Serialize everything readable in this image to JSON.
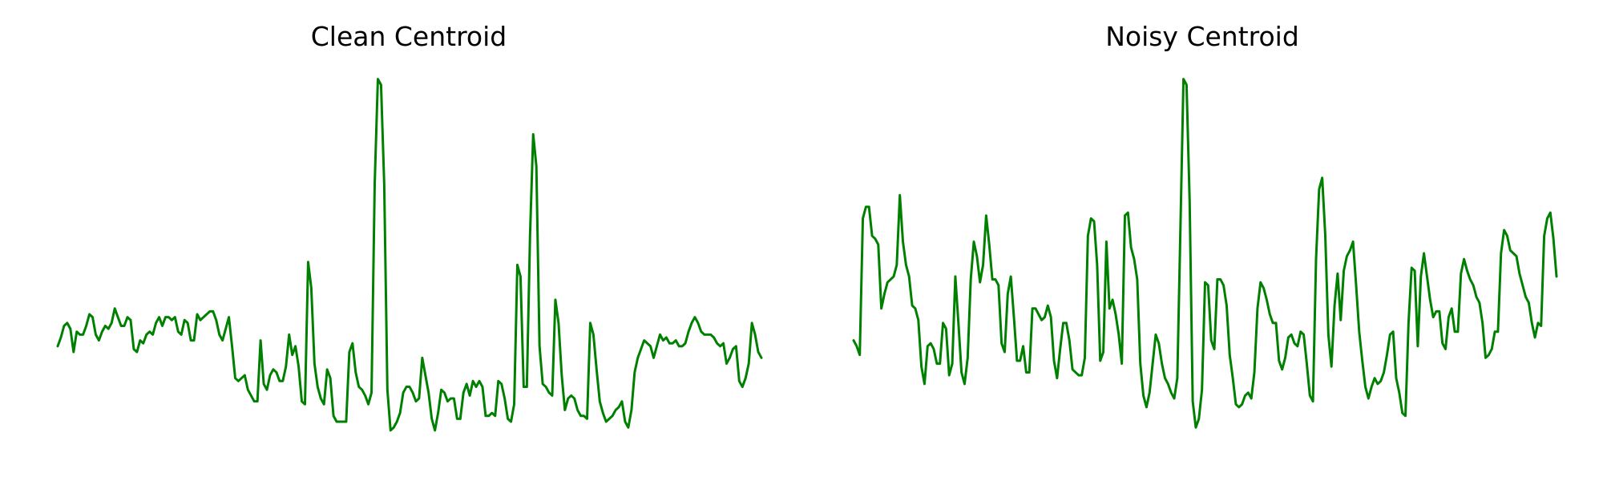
{
  "figure": {
    "background": "#ffffff",
    "line_color": "#008000"
  },
  "chart_data": [
    {
      "type": "line",
      "title": "Clean Centroid",
      "xlabel": "",
      "ylabel": "",
      "grid": false,
      "axes_visible": false,
      "ylim": [
        -2.0,
        4.35
      ],
      "series": [
        {
          "color": "#008000",
          "values": [
            -0.3,
            -0.15,
            0.05,
            0.1,
            0.0,
            -0.4,
            -0.05,
            -0.1,
            -0.1,
            0.05,
            0.25,
            0.2,
            -0.1,
            -0.2,
            -0.05,
            0.05,
            0.0,
            0.1,
            0.35,
            0.2,
            0.05,
            0.05,
            0.2,
            0.15,
            -0.35,
            -0.4,
            -0.2,
            -0.25,
            -0.1,
            -0.05,
            -0.1,
            0.1,
            0.2,
            0.05,
            0.2,
            0.2,
            0.15,
            0.2,
            -0.05,
            -0.1,
            0.15,
            0.1,
            -0.2,
            -0.2,
            0.25,
            0.15,
            0.2,
            0.25,
            0.3,
            0.3,
            0.15,
            -0.1,
            -0.2,
            0.0,
            0.2,
            -0.3,
            -0.85,
            -0.9,
            -0.85,
            -0.8,
            -1.05,
            -1.15,
            -1.25,
            -1.25,
            -0.2,
            -0.95,
            -1.05,
            -0.8,
            -0.7,
            -0.75,
            -0.9,
            -0.9,
            -0.65,
            -0.1,
            -0.45,
            -0.3,
            -0.65,
            -1.25,
            -1.3,
            1.15,
            0.7,
            -0.6,
            -1.0,
            -1.2,
            -1.3,
            -0.7,
            -0.85,
            -1.5,
            -1.6,
            -1.6,
            -1.6,
            -1.6,
            -0.4,
            -0.25,
            -0.75,
            -1.0,
            -1.05,
            -1.15,
            -1.3,
            -1.1,
            2.5,
            4.3,
            4.2,
            2.5,
            -1.05,
            -1.75,
            -1.7,
            -1.6,
            -1.45,
            -1.1,
            -1.0,
            -1.0,
            -1.1,
            -1.25,
            -1.2,
            -0.5,
            -0.8,
            -1.1,
            -1.55,
            -1.75,
            -1.45,
            -1.05,
            -1.1,
            -1.25,
            -1.2,
            -1.2,
            -1.55,
            -1.55,
            -1.1,
            -0.95,
            -1.15,
            -0.9,
            -1.0,
            -0.9,
            -1.0,
            -1.5,
            -1.5,
            -1.45,
            -1.5,
            -0.9,
            -0.95,
            -1.2,
            -1.55,
            -1.6,
            -1.3,
            1.1,
            0.9,
            -1.0,
            -1.0,
            1.6,
            3.35,
            2.8,
            -0.3,
            -0.95,
            -1.0,
            -1.1,
            -1.15,
            0.5,
            0.1,
            -0.8,
            -1.4,
            -1.2,
            -1.15,
            -1.2,
            -1.4,
            -1.5,
            -1.5,
            -1.55,
            0.1,
            -0.1,
            -0.7,
            -1.25,
            -1.45,
            -1.6,
            -1.55,
            -1.5,
            -1.4,
            -1.35,
            -1.25,
            -1.6,
            -1.7,
            -1.4,
            -0.75,
            -0.5,
            -0.35,
            -0.2,
            -0.25,
            -0.3,
            -0.5,
            -0.3,
            -0.1,
            -0.2,
            -0.15,
            -0.25,
            -0.25,
            -0.2,
            -0.3,
            -0.3,
            -0.25,
            -0.05,
            0.1,
            0.2,
            0.1,
            -0.05,
            -0.1,
            -0.1,
            -0.1,
            -0.15,
            -0.25,
            -0.3,
            -0.25,
            -0.6,
            -0.5,
            -0.35,
            -0.3,
            -0.9,
            -1.0,
            -0.85,
            -0.6,
            0.1,
            -0.1,
            -0.4,
            -0.5
          ]
        }
      ]
    },
    {
      "type": "line",
      "title": "Noisy Centroid",
      "xlabel": "",
      "ylabel": "",
      "grid": false,
      "axes_visible": false,
      "ylim": [
        -2.0,
        4.35
      ],
      "series": [
        {
          "color": "#008000",
          "values": [
            -0.2,
            -0.3,
            -0.45,
            1.9,
            2.1,
            2.1,
            1.6,
            1.55,
            1.45,
            0.35,
            0.6,
            0.8,
            0.85,
            0.9,
            1.1,
            2.3,
            1.5,
            1.1,
            0.9,
            0.4,
            0.35,
            0.15,
            -0.65,
            -0.95,
            -0.3,
            -0.25,
            -0.35,
            -0.6,
            -0.6,
            0.1,
            0.0,
            -0.8,
            -0.6,
            0.9,
            0.1,
            -0.75,
            -0.95,
            -0.5,
            0.85,
            1.5,
            1.25,
            0.8,
            1.1,
            1.95,
            1.45,
            0.85,
            0.85,
            0.75,
            -0.25,
            -0.4,
            0.6,
            0.9,
            0.2,
            -0.55,
            -0.55,
            -0.3,
            -0.75,
            -0.75,
            0.35,
            0.35,
            0.25,
            0.15,
            0.2,
            0.4,
            0.2,
            -0.55,
            -0.85,
            -0.35,
            0.1,
            0.1,
            -0.2,
            -0.7,
            -0.75,
            -0.8,
            -0.8,
            -0.5,
            1.6,
            1.9,
            1.85,
            1.1,
            -0.55,
            -0.4,
            1.5,
            0.35,
            0.5,
            0.25,
            -0.1,
            -0.6,
            1.95,
            2.0,
            1.4,
            1.2,
            0.85,
            -0.6,
            -1.15,
            -1.35,
            -1.1,
            -0.6,
            -0.1,
            -0.25,
            -0.6,
            -0.85,
            -0.95,
            -1.1,
            -1.2,
            -0.85,
            1.7,
            4.3,
            4.2,
            2.2,
            -1.25,
            -1.7,
            -1.55,
            -1.05,
            0.8,
            0.75,
            -0.2,
            -0.35,
            0.85,
            0.85,
            0.75,
            0.4,
            -0.45,
            -0.85,
            -1.3,
            -1.35,
            -1.3,
            -1.15,
            -1.1,
            -1.2,
            -0.75,
            0.35,
            0.8,
            0.7,
            0.5,
            0.25,
            0.1,
            0.1,
            -0.55,
            -0.7,
            -0.5,
            -0.15,
            -0.1,
            -0.25,
            -0.3,
            -0.05,
            -0.1,
            -0.6,
            -1.15,
            -1.25,
            1.2,
            2.4,
            2.6,
            1.6,
            -0.1,
            -0.65,
            0.4,
            0.95,
            0.15,
            1.0,
            1.25,
            1.35,
            1.5,
            0.75,
            -0.05,
            -0.55,
            -1.0,
            -1.2,
            -1.0,
            -0.85,
            -0.95,
            -0.9,
            -0.75,
            -0.45,
            -0.1,
            -0.05,
            -0.85,
            -1.1,
            -1.45,
            -1.5,
            0.1,
            1.05,
            1.0,
            -0.3,
            0.9,
            1.3,
            0.9,
            0.5,
            0.2,
            0.3,
            0.3,
            -0.25,
            -0.35,
            0.2,
            0.35,
            -0.05,
            -0.05,
            0.95,
            1.2,
            1.0,
            0.85,
            0.75,
            0.55,
            0.45,
            0.1,
            -0.5,
            -0.45,
            -0.35,
            -0.05,
            -0.05,
            1.3,
            1.7,
            1.6,
            1.35,
            1.3,
            1.25,
            0.95,
            0.75,
            0.55,
            0.45,
            0.1,
            -0.15,
            0.1,
            0.05,
            1.6,
            1.9,
            2.0,
            1.55,
            0.9
          ]
        }
      ]
    }
  ]
}
